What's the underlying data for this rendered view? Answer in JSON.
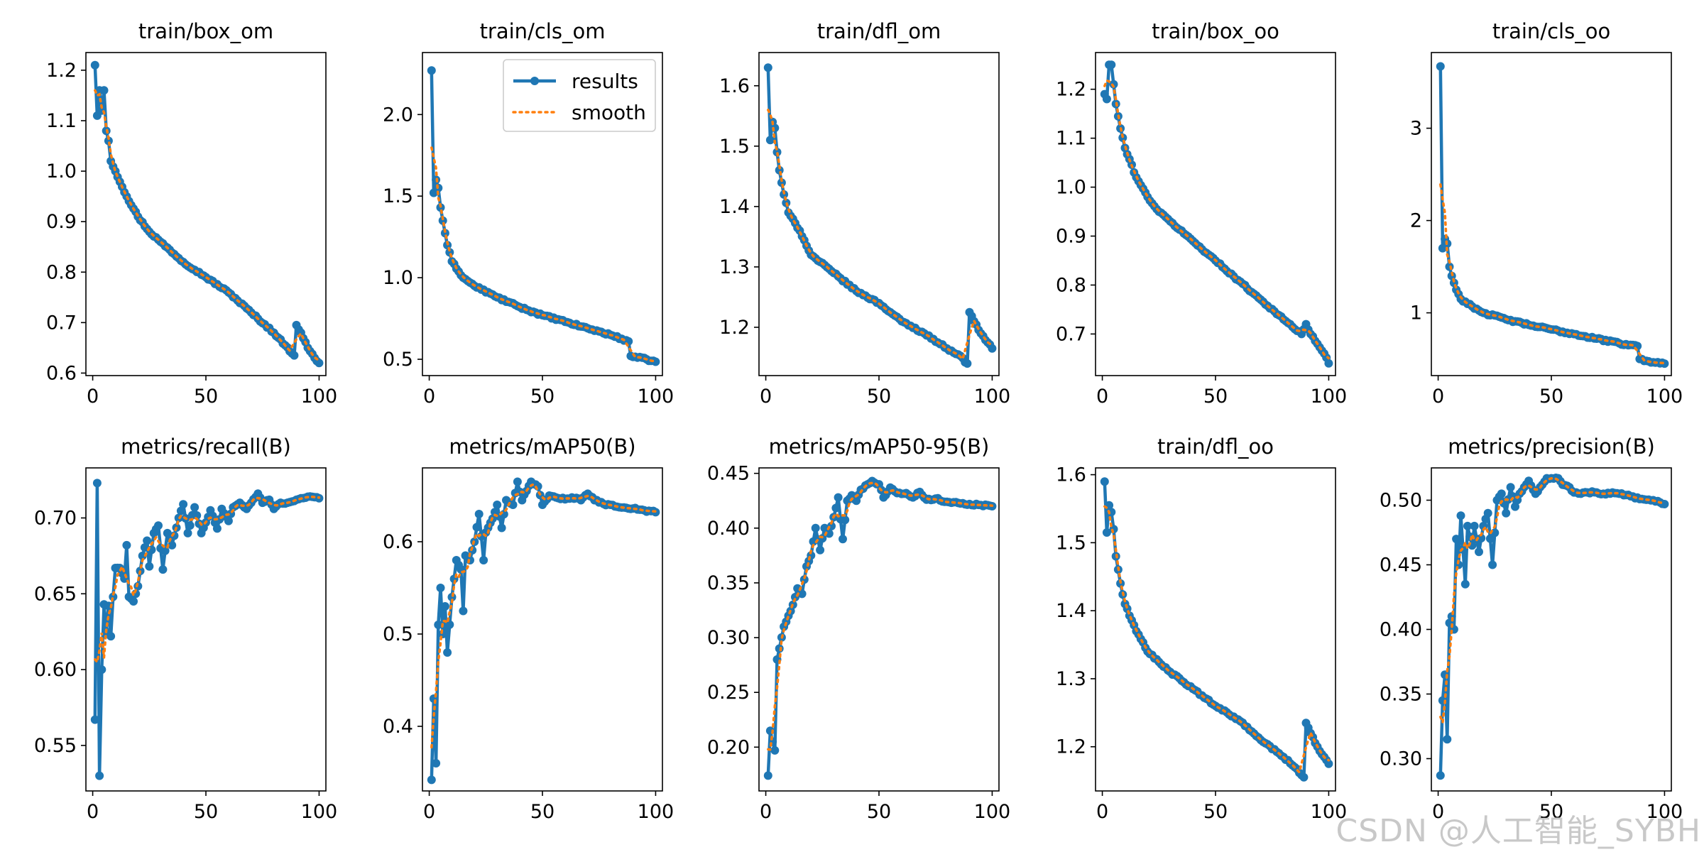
{
  "colors": {
    "results": "#1f77b4",
    "smooth": "#ff7f0e",
    "watermark": "#c8c8c8"
  },
  "legend": {
    "results_label": "results",
    "smooth_label": "smooth",
    "placement": "upper-right of train/cls_om"
  },
  "watermark": "CSDN @人工智能_SYBH",
  "chart_data": [
    {
      "type": "line",
      "title": "train/box_om",
      "xlim": [
        -3,
        103
      ],
      "ylim": [
        0.595,
        1.235
      ],
      "xticks": [
        0,
        50,
        100
      ],
      "yticks": [
        0.6,
        0.7,
        0.8,
        0.9,
        1.0,
        1.1,
        1.2
      ],
      "ytick_decimals": 1,
      "anchors": [
        [
          1,
          1.21
        ],
        [
          2,
          1.11
        ],
        [
          3,
          1.16
        ],
        [
          4,
          1.12
        ],
        [
          5,
          1.16
        ],
        [
          6,
          1.08
        ],
        [
          7,
          1.06
        ],
        [
          8,
          1.02
        ],
        [
          10,
          1.0
        ],
        [
          15,
          0.95
        ],
        [
          20,
          0.91
        ],
        [
          25,
          0.88
        ],
        [
          30,
          0.86
        ],
        [
          40,
          0.82
        ],
        [
          50,
          0.79
        ],
        [
          60,
          0.76
        ],
        [
          70,
          0.72
        ],
        [
          80,
          0.68
        ],
        [
          85,
          0.655
        ],
        [
          89,
          0.635
        ],
        [
          90,
          0.695
        ],
        [
          92,
          0.68
        ],
        [
          95,
          0.65
        ],
        [
          98,
          0.63
        ],
        [
          100,
          0.62
        ]
      ]
    },
    {
      "type": "line",
      "title": "train/cls_om",
      "xlim": [
        -3,
        103
      ],
      "ylim": [
        0.4,
        2.38
      ],
      "xticks": [
        0,
        50,
        100
      ],
      "yticks": [
        0.5,
        1.0,
        1.5,
        2.0
      ],
      "ytick_decimals": 1,
      "anchors": [
        [
          1,
          2.27
        ],
        [
          2,
          1.52
        ],
        [
          3,
          1.6
        ],
        [
          4,
          1.55
        ],
        [
          5,
          1.43
        ],
        [
          6,
          1.35
        ],
        [
          8,
          1.2
        ],
        [
          10,
          1.1
        ],
        [
          15,
          1.0
        ],
        [
          20,
          0.95
        ],
        [
          30,
          0.88
        ],
        [
          40,
          0.82
        ],
        [
          50,
          0.77
        ],
        [
          60,
          0.73
        ],
        [
          70,
          0.69
        ],
        [
          80,
          0.65
        ],
        [
          88,
          0.61
        ],
        [
          89,
          0.52
        ],
        [
          92,
          0.51
        ],
        [
          96,
          0.5
        ],
        [
          100,
          0.485
        ]
      ]
    },
    {
      "type": "line",
      "title": "train/dfl_om",
      "xlim": [
        -3,
        103
      ],
      "ylim": [
        1.12,
        1.655
      ],
      "xticks": [
        0,
        50,
        100
      ],
      "yticks": [
        1.2,
        1.3,
        1.4,
        1.5,
        1.6
      ],
      "ytick_decimals": 1,
      "anchors": [
        [
          1,
          1.63
        ],
        [
          2,
          1.51
        ],
        [
          3,
          1.54
        ],
        [
          4,
          1.53
        ],
        [
          5,
          1.49
        ],
        [
          6,
          1.46
        ],
        [
          8,
          1.42
        ],
        [
          10,
          1.39
        ],
        [
          15,
          1.36
        ],
        [
          20,
          1.32
        ],
        [
          30,
          1.29
        ],
        [
          40,
          1.26
        ],
        [
          50,
          1.24
        ],
        [
          60,
          1.21
        ],
        [
          70,
          1.19
        ],
        [
          80,
          1.165
        ],
        [
          85,
          1.155
        ],
        [
          89,
          1.14
        ],
        [
          90,
          1.225
        ],
        [
          92,
          1.21
        ],
        [
          95,
          1.19
        ],
        [
          98,
          1.175
        ],
        [
          100,
          1.165
        ]
      ]
    },
    {
      "type": "line",
      "title": "train/box_oo",
      "xlim": [
        -3,
        103
      ],
      "ylim": [
        0.615,
        1.275
      ],
      "xticks": [
        0,
        50,
        100
      ],
      "yticks": [
        0.7,
        0.8,
        0.9,
        1.0,
        1.1,
        1.2
      ],
      "ytick_decimals": 1,
      "anchors": [
        [
          1,
          1.19
        ],
        [
          2,
          1.18
        ],
        [
          3,
          1.25
        ],
        [
          4,
          1.25
        ],
        [
          5,
          1.21
        ],
        [
          6,
          1.17
        ],
        [
          8,
          1.12
        ],
        [
          10,
          1.08
        ],
        [
          15,
          1.02
        ],
        [
          20,
          0.98
        ],
        [
          25,
          0.95
        ],
        [
          30,
          0.93
        ],
        [
          40,
          0.89
        ],
        [
          50,
          0.85
        ],
        [
          60,
          0.81
        ],
        [
          70,
          0.77
        ],
        [
          80,
          0.73
        ],
        [
          88,
          0.7
        ],
        [
          90,
          0.72
        ],
        [
          92,
          0.7
        ],
        [
          95,
          0.68
        ],
        [
          98,
          0.66
        ],
        [
          100,
          0.64
        ]
      ]
    },
    {
      "type": "line",
      "title": "train/cls_oo",
      "xlim": [
        -3,
        103
      ],
      "ylim": [
        0.32,
        3.82
      ],
      "xticks": [
        0,
        50,
        100
      ],
      "yticks": [
        1,
        2,
        3
      ],
      "ytick_decimals": 0,
      "anchors": [
        [
          1,
          3.67
        ],
        [
          2,
          1.7
        ],
        [
          3,
          1.8
        ],
        [
          4,
          1.75
        ],
        [
          5,
          1.5
        ],
        [
          6,
          1.4
        ],
        [
          8,
          1.25
        ],
        [
          10,
          1.15
        ],
        [
          15,
          1.07
        ],
        [
          20,
          1.0
        ],
        [
          30,
          0.93
        ],
        [
          40,
          0.87
        ],
        [
          50,
          0.82
        ],
        [
          60,
          0.77
        ],
        [
          70,
          0.72
        ],
        [
          80,
          0.67
        ],
        [
          88,
          0.64
        ],
        [
          89,
          0.5
        ],
        [
          92,
          0.48
        ],
        [
          96,
          0.46
        ],
        [
          100,
          0.45
        ]
      ]
    },
    {
      "type": "line",
      "title": "metrics/recall(B)",
      "xlim": [
        -3,
        103
      ],
      "ylim": [
        0.52,
        0.733
      ],
      "xticks": [
        0,
        50,
        100
      ],
      "yticks": [
        0.55,
        0.6,
        0.65,
        0.7
      ],
      "ytick_decimals": 2,
      "anchors": [
        [
          1,
          0.567
        ],
        [
          2,
          0.723
        ],
        [
          3,
          0.53
        ],
        [
          4,
          0.6
        ],
        [
          5,
          0.643
        ],
        [
          6,
          0.625
        ],
        [
          7,
          0.642
        ],
        [
          8,
          0.622
        ],
        [
          9,
          0.648
        ],
        [
          10,
          0.667
        ],
        [
          12,
          0.667
        ],
        [
          14,
          0.66
        ],
        [
          15,
          0.682
        ],
        [
          16,
          0.648
        ],
        [
          18,
          0.645
        ],
        [
          20,
          0.655
        ],
        [
          22,
          0.675
        ],
        [
          24,
          0.685
        ],
        [
          25,
          0.668
        ],
        [
          27,
          0.69
        ],
        [
          29,
          0.695
        ],
        [
          31,
          0.666
        ],
        [
          33,
          0.69
        ],
        [
          35,
          0.682
        ],
        [
          38,
          0.7
        ],
        [
          40,
          0.709
        ],
        [
          42,
          0.69
        ],
        [
          45,
          0.707
        ],
        [
          48,
          0.69
        ],
        [
          50,
          0.697
        ],
        [
          52,
          0.705
        ],
        [
          55,
          0.693
        ],
        [
          57,
          0.706
        ],
        [
          60,
          0.698
        ],
        [
          62,
          0.707
        ],
        [
          65,
          0.71
        ],
        [
          68,
          0.706
        ],
        [
          70,
          0.71
        ],
        [
          73,
          0.716
        ],
        [
          75,
          0.71
        ],
        [
          78,
          0.712
        ],
        [
          80,
          0.706
        ],
        [
          83,
          0.71
        ],
        [
          86,
          0.71
        ],
        [
          90,
          0.712
        ],
        [
          95,
          0.714
        ],
        [
          100,
          0.713
        ]
      ]
    },
    {
      "type": "line",
      "title": "metrics/mAP50(B)",
      "xlim": [
        -3,
        103
      ],
      "ylim": [
        0.33,
        0.68
      ],
      "xticks": [
        0,
        50,
        100
      ],
      "yticks": [
        0.4,
        0.5,
        0.6
      ],
      "ytick_decimals": 1,
      "anchors": [
        [
          1,
          0.342
        ],
        [
          2,
          0.43
        ],
        [
          3,
          0.36
        ],
        [
          4,
          0.51
        ],
        [
          5,
          0.55
        ],
        [
          6,
          0.5
        ],
        [
          7,
          0.53
        ],
        [
          8,
          0.48
        ],
        [
          10,
          0.54
        ],
        [
          12,
          0.58
        ],
        [
          14,
          0.57
        ],
        [
          15,
          0.525
        ],
        [
          16,
          0.585
        ],
        [
          18,
          0.58
        ],
        [
          20,
          0.6
        ],
        [
          22,
          0.63
        ],
        [
          24,
          0.58
        ],
        [
          25,
          0.61
        ],
        [
          28,
          0.625
        ],
        [
          30,
          0.64
        ],
        [
          32,
          0.615
        ],
        [
          34,
          0.645
        ],
        [
          37,
          0.64
        ],
        [
          39,
          0.665
        ],
        [
          41,
          0.645
        ],
        [
          43,
          0.655
        ],
        [
          45,
          0.665
        ],
        [
          48,
          0.66
        ],
        [
          50,
          0.64
        ],
        [
          53,
          0.65
        ],
        [
          56,
          0.648
        ],
        [
          60,
          0.646
        ],
        [
          63,
          0.648
        ],
        [
          67,
          0.645
        ],
        [
          70,
          0.652
        ],
        [
          73,
          0.645
        ],
        [
          77,
          0.641
        ],
        [
          80,
          0.64
        ],
        [
          85,
          0.637
        ],
        [
          90,
          0.636
        ],
        [
          95,
          0.634
        ],
        [
          100,
          0.632
        ]
      ]
    },
    {
      "type": "line",
      "title": "metrics/mAP50-95(B)",
      "xlim": [
        -3,
        103
      ],
      "ylim": [
        0.16,
        0.455
      ],
      "xticks": [
        0,
        50,
        100
      ],
      "yticks": [
        0.2,
        0.25,
        0.3,
        0.35,
        0.4,
        0.45
      ],
      "ytick_decimals": 2,
      "anchors": [
        [
          1,
          0.174
        ],
        [
          2,
          0.215
        ],
        [
          3,
          0.205
        ],
        [
          4,
          0.197
        ],
        [
          5,
          0.28
        ],
        [
          6,
          0.29
        ],
        [
          8,
          0.31
        ],
        [
          10,
          0.32
        ],
        [
          12,
          0.33
        ],
        [
          14,
          0.345
        ],
        [
          16,
          0.34
        ],
        [
          18,
          0.365
        ],
        [
          20,
          0.375
        ],
        [
          22,
          0.4
        ],
        [
          24,
          0.38
        ],
        [
          26,
          0.4
        ],
        [
          28,
          0.395
        ],
        [
          30,
          0.41
        ],
        [
          32,
          0.428
        ],
        [
          34,
          0.39
        ],
        [
          36,
          0.425
        ],
        [
          38,
          0.43
        ],
        [
          40,
          0.425
        ],
        [
          42,
          0.435
        ],
        [
          45,
          0.44
        ],
        [
          47,
          0.443
        ],
        [
          50,
          0.44
        ],
        [
          52,
          0.428
        ],
        [
          55,
          0.437
        ],
        [
          58,
          0.432
        ],
        [
          62,
          0.432
        ],
        [
          65,
          0.428
        ],
        [
          68,
          0.433
        ],
        [
          71,
          0.426
        ],
        [
          75,
          0.427
        ],
        [
          80,
          0.424
        ],
        [
          85,
          0.423
        ],
        [
          90,
          0.422
        ],
        [
          95,
          0.421
        ],
        [
          100,
          0.42
        ]
      ]
    },
    {
      "type": "line",
      "title": "train/dfl_oo",
      "xlim": [
        -3,
        103
      ],
      "ylim": [
        1.135,
        1.61
      ],
      "xticks": [
        0,
        50,
        100
      ],
      "yticks": [
        1.2,
        1.3,
        1.4,
        1.5,
        1.6
      ],
      "ytick_decimals": 1,
      "anchors": [
        [
          1,
          1.59
        ],
        [
          2,
          1.515
        ],
        [
          3,
          1.555
        ],
        [
          4,
          1.545
        ],
        [
          5,
          1.52
        ],
        [
          6,
          1.48
        ],
        [
          8,
          1.44
        ],
        [
          10,
          1.41
        ],
        [
          15,
          1.37
        ],
        [
          20,
          1.34
        ],
        [
          30,
          1.31
        ],
        [
          40,
          1.285
        ],
        [
          50,
          1.26
        ],
        [
          60,
          1.24
        ],
        [
          70,
          1.21
        ],
        [
          80,
          1.185
        ],
        [
          85,
          1.17
        ],
        [
          89,
          1.155
        ],
        [
          90,
          1.235
        ],
        [
          92,
          1.22
        ],
        [
          95,
          1.2
        ],
        [
          98,
          1.185
        ],
        [
          100,
          1.175
        ]
      ]
    },
    {
      "type": "line",
      "title": "metrics/precision(B)",
      "xlim": [
        -3,
        103
      ],
      "ylim": [
        0.275,
        0.525
      ],
      "xticks": [
        0,
        50,
        100
      ],
      "yticks": [
        0.3,
        0.35,
        0.4,
        0.45,
        0.5
      ],
      "ytick_decimals": 2,
      "anchors": [
        [
          1,
          0.287
        ],
        [
          2,
          0.345
        ],
        [
          3,
          0.365
        ],
        [
          4,
          0.315
        ],
        [
          5,
          0.405
        ],
        [
          6,
          0.41
        ],
        [
          7,
          0.4
        ],
        [
          8,
          0.47
        ],
        [
          9,
          0.45
        ],
        [
          10,
          0.488
        ],
        [
          12,
          0.435
        ],
        [
          13,
          0.48
        ],
        [
          15,
          0.465
        ],
        [
          16,
          0.48
        ],
        [
          18,
          0.46
        ],
        [
          20,
          0.48
        ],
        [
          22,
          0.49
        ],
        [
          24,
          0.45
        ],
        [
          26,
          0.5
        ],
        [
          28,
          0.505
        ],
        [
          30,
          0.49
        ],
        [
          32,
          0.51
        ],
        [
          34,
          0.495
        ],
        [
          36,
          0.505
        ],
        [
          38,
          0.51
        ],
        [
          40,
          0.515
        ],
        [
          43,
          0.505
        ],
        [
          46,
          0.512
        ],
        [
          48,
          0.517
        ],
        [
          50,
          0.517
        ],
        [
          53,
          0.517
        ],
        [
          55,
          0.512
        ],
        [
          58,
          0.51
        ],
        [
          60,
          0.506
        ],
        [
          63,
          0.505
        ],
        [
          66,
          0.506
        ],
        [
          70,
          0.506
        ],
        [
          73,
          0.505
        ],
        [
          77,
          0.506
        ],
        [
          80,
          0.505
        ],
        [
          85,
          0.503
        ],
        [
          90,
          0.501
        ],
        [
          95,
          0.5
        ],
        [
          100,
          0.497
        ]
      ]
    }
  ]
}
